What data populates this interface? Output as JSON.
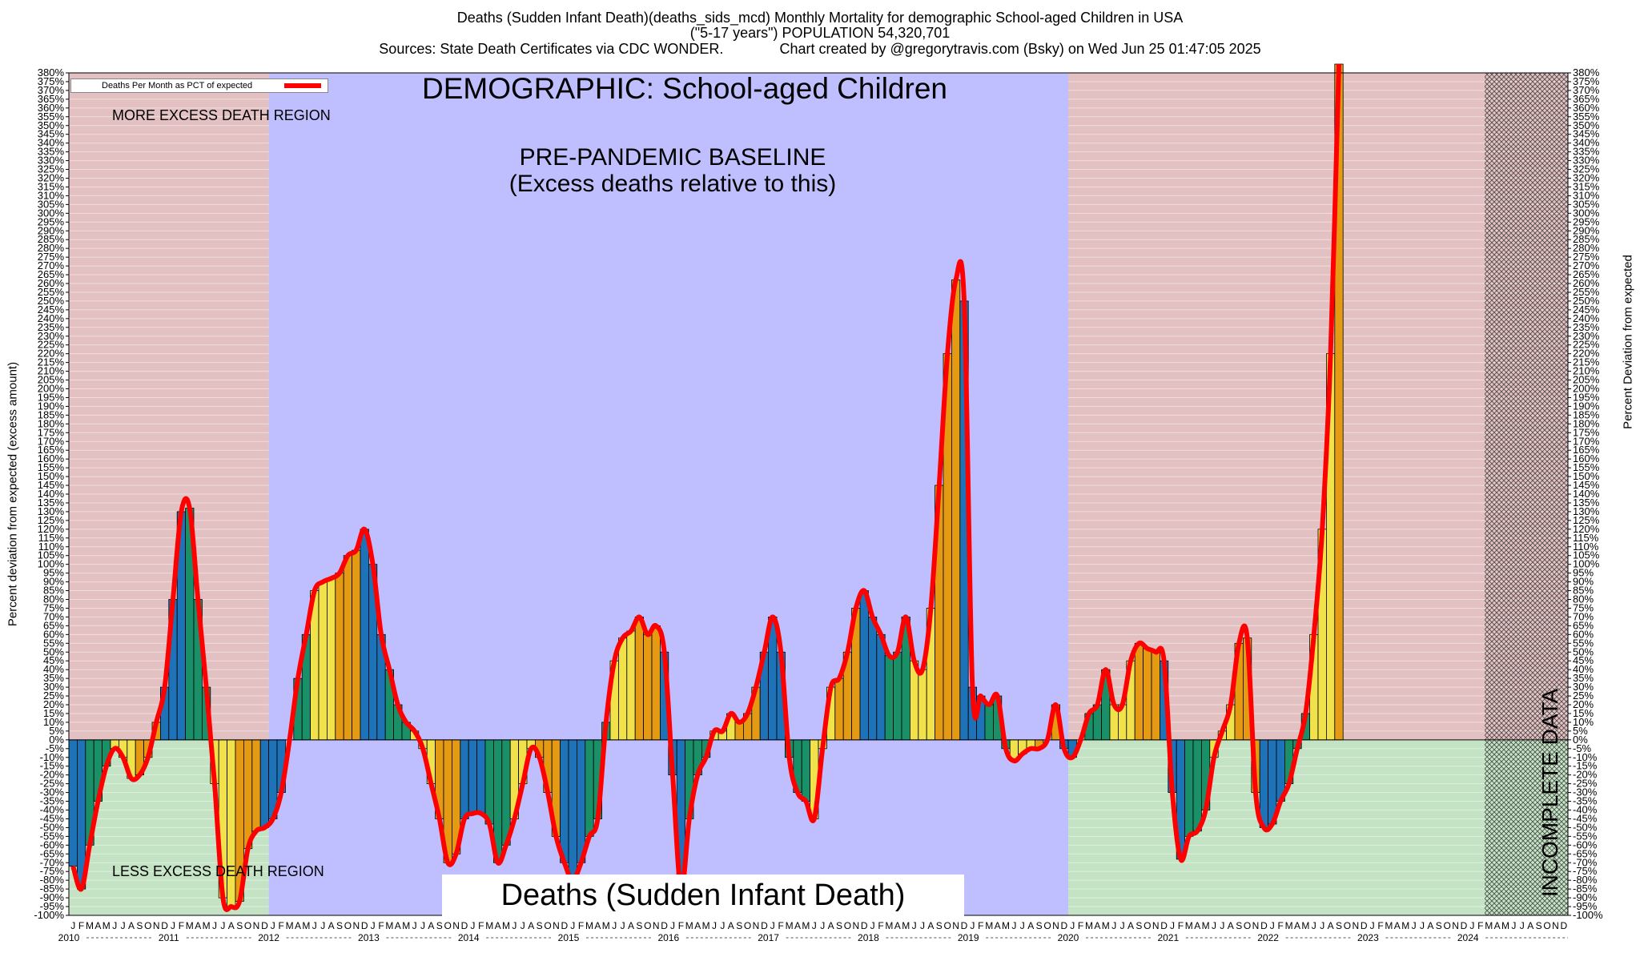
{
  "header": {
    "line1": "Deaths (Sudden Infant Death)(deaths_sids_mcd) Monthly Mortality for demographic School-aged Children in USA",
    "line2": "(\"5-17 years\") POPULATION 54,320,701",
    "line3": "Sources: State Death Certificates via CDC WONDER.              Chart created by @gregorytravis.com (Bsky) on Wed Jun 25 01:47:05 2025"
  },
  "annotations": {
    "demographic": "DEMOGRAPHIC: School-aged Children",
    "baseline_line1": "PRE-PANDEMIC BASELINE",
    "baseline_line2": "(Excess deaths relative to this)",
    "more_region": "MORE EXCESS DEATH REGION",
    "less_region": "LESS EXCESS DEATH REGION",
    "metric": "Deaths (Sudden Infant Death)",
    "incomplete": "INCOMPLETE DATA"
  },
  "legend": {
    "label": "Deaths Per Month as PCT of expected",
    "color": "#ff0000"
  },
  "colors": {
    "more_region": "#e3c1c2",
    "less_region": "#c4e3c4",
    "baseline_region": "#bfbfff",
    "line": "#ff0000",
    "season_colors": [
      "#1d72b8",
      "#1a9068",
      "#f1e14a",
      "#e49a12"
    ]
  },
  "chart_data": {
    "type": "bar",
    "ylabel_left": "Percent deviation from expected (excess amount)",
    "ylabel_right": "Percent Deviation from expected",
    "ylim": [
      -100,
      380
    ],
    "ytick_step": 5,
    "month_letters": [
      "J",
      "F",
      "M",
      "A",
      "M",
      "J",
      "J",
      "A",
      "S",
      "O",
      "N",
      "D"
    ],
    "years": [
      "2010",
      "2011",
      "2012",
      "2013",
      "2014",
      "2015",
      "2016",
      "2017",
      "2018",
      "2019",
      "2020",
      "2021",
      "2022",
      "2023",
      "2024"
    ],
    "baseline_period": [
      "2012-01",
      "2019-12"
    ],
    "incomplete_from": "2024-03",
    "series": [
      {
        "name": "Deaths Per Month as PCT of expected",
        "start": "2010-01",
        "values": [
          -72,
          -85,
          -60,
          -35,
          -15,
          -5,
          -10,
          -22,
          -20,
          -10,
          10,
          30,
          80,
          130,
          132,
          80,
          30,
          -25,
          -90,
          -95,
          -92,
          -62,
          -52,
          -50,
          -45,
          -30,
          0,
          35,
          60,
          85,
          90,
          92,
          95,
          105,
          108,
          120,
          100,
          60,
          40,
          20,
          10,
          5,
          -5,
          -25,
          -45,
          -70,
          -65,
          -45,
          -42,
          -42,
          -48,
          -70,
          -60,
          -45,
          -25,
          -5,
          -10,
          -30,
          -55,
          -70,
          -80,
          -70,
          -55,
          -45,
          10,
          45,
          58,
          62,
          70,
          60,
          65,
          50,
          -20,
          -85,
          -45,
          -20,
          -10,
          5,
          5,
          15,
          10,
          15,
          30,
          50,
          70,
          50,
          -10,
          -30,
          -35,
          -45,
          -5,
          30,
          35,
          50,
          75,
          85,
          70,
          60,
          48,
          50,
          70,
          45,
          40,
          75,
          145,
          220,
          262,
          250,
          30,
          25,
          20,
          25,
          -5,
          -12,
          -8,
          -5,
          -5,
          0,
          20,
          -5,
          -10,
          0,
          15,
          20,
          40,
          20,
          20,
          45,
          55,
          52,
          50,
          45,
          -30,
          -68,
          -55,
          -52,
          -40,
          -10,
          5,
          20,
          55,
          58,
          -30,
          -50,
          -48,
          -35,
          -25,
          -5,
          15,
          60,
          120,
          220,
          385
        ]
      }
    ]
  }
}
